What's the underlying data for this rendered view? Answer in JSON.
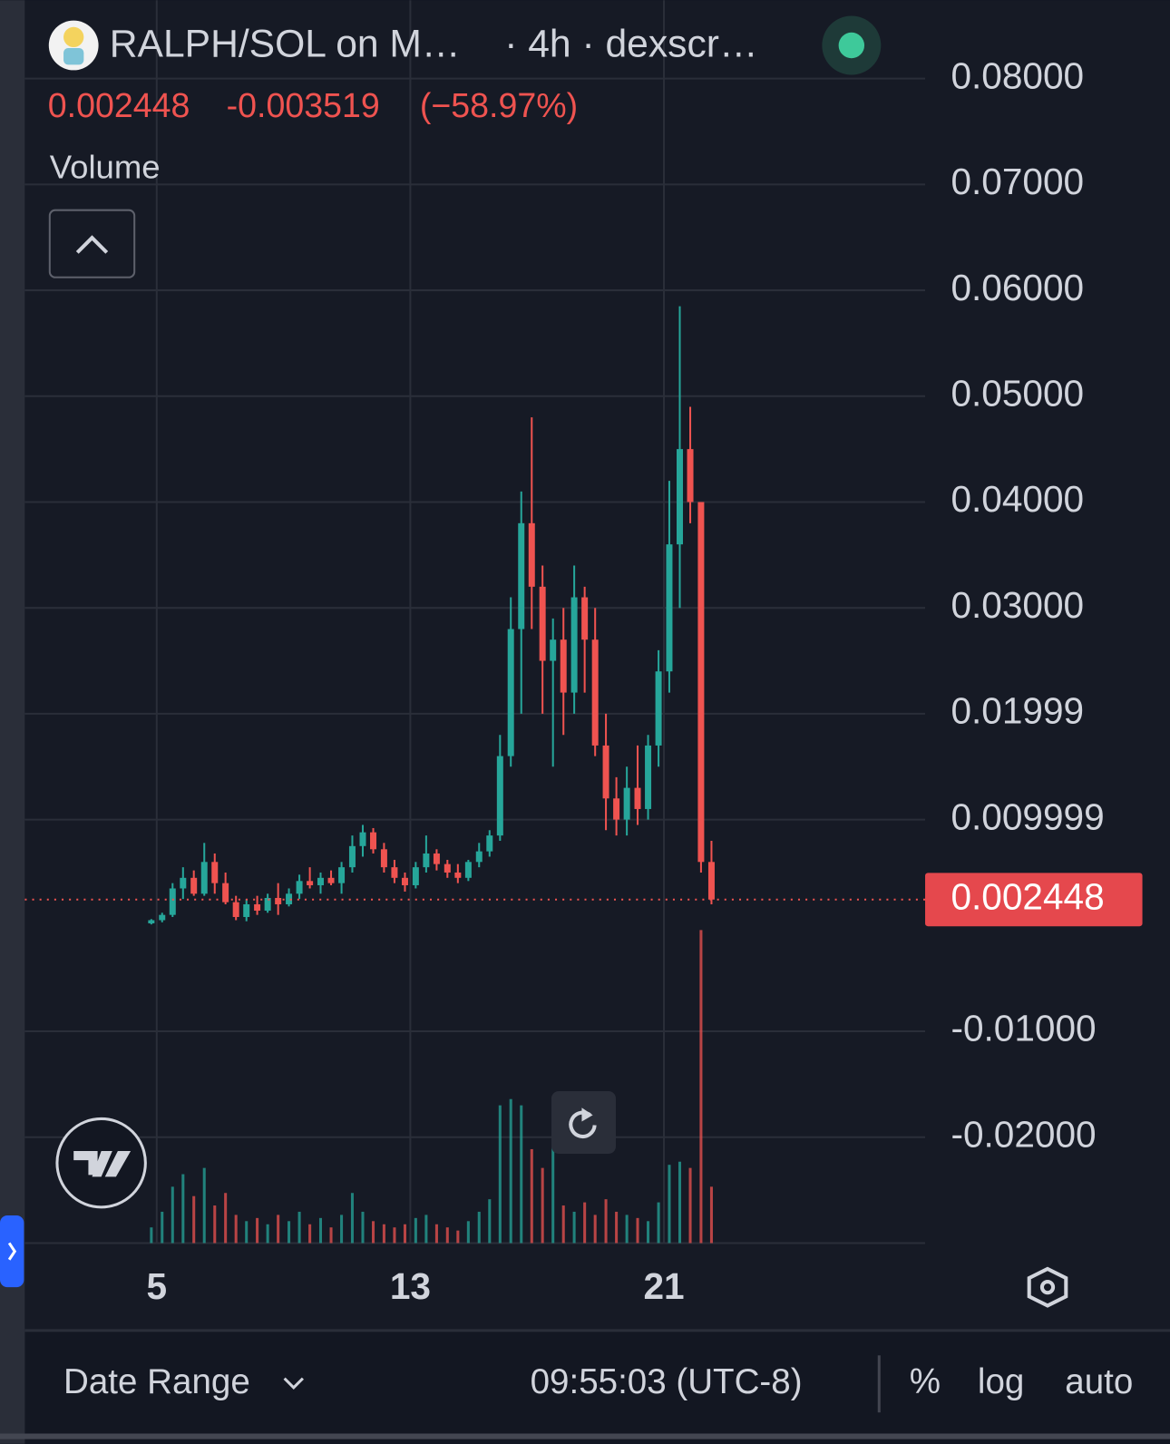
{
  "header": {
    "symbol": "RALPH/SOL on M…",
    "interval_source": "· 4h · dexscr…",
    "change": "-0.003519",
    "change_percent": "(−58.97%)",
    "volume_label": "Volume"
  },
  "footer": {
    "date_range": "Date Range",
    "time": "09:55:03 (UTC-8)",
    "percent": "%",
    "log": "log",
    "auto": "auto"
  },
  "chart_data": {
    "type": "candlestick",
    "up_color": "#26a69a",
    "down_color": "#ef5350",
    "grid": true,
    "x": [
      4.83,
      5.17,
      5.5,
      5.83,
      6.17,
      6.5,
      6.83,
      7.17,
      7.5,
      7.83,
      8.17,
      8.5,
      8.83,
      9.17,
      9.5,
      9.83,
      10.17,
      10.5,
      10.83,
      11.17,
      11.5,
      11.83,
      12.17,
      12.5,
      12.83,
      13.17,
      13.5,
      13.83,
      14.17,
      14.5,
      14.83,
      15.17,
      15.5,
      15.83,
      16.17,
      16.5,
      16.83,
      17.17,
      17.5,
      17.83,
      18.17,
      18.5,
      18.83,
      19.17,
      19.5,
      19.83,
      20.17,
      20.5,
      20.83,
      21.17,
      21.5,
      21.83,
      22.17,
      22.5
    ],
    "open": [
      0.0002,
      0.0005,
      0.001,
      0.0035,
      0.0045,
      0.003,
      0.006,
      0.004,
      0.0022,
      0.0008,
      0.002,
      0.0014,
      0.0026,
      0.002,
      0.003,
      0.0042,
      0.0038,
      0.0045,
      0.004,
      0.0055,
      0.0075,
      0.0088,
      0.0072,
      0.0055,
      0.0045,
      0.0038,
      0.0055,
      0.0068,
      0.0058,
      0.005,
      0.0045,
      0.006,
      0.007,
      0.0085,
      0.016,
      0.028,
      0.038,
      0.032,
      0.025,
      0.027,
      0.022,
      0.031,
      0.027,
      0.017,
      0.012,
      0.01,
      0.013,
      0.011,
      0.017,
      0.024,
      0.036,
      0.045,
      0.04,
      0.006
    ],
    "high": [
      0.0006,
      0.0012,
      0.004,
      0.0055,
      0.0052,
      0.0078,
      0.0068,
      0.005,
      0.0028,
      0.0025,
      0.0028,
      0.003,
      0.004,
      0.0035,
      0.0048,
      0.0055,
      0.005,
      0.0052,
      0.006,
      0.0085,
      0.0095,
      0.0092,
      0.0078,
      0.0062,
      0.005,
      0.006,
      0.0085,
      0.0072,
      0.0062,
      0.0058,
      0.0062,
      0.0078,
      0.009,
      0.018,
      0.031,
      0.041,
      0.048,
      0.034,
      0.029,
      0.03,
      0.034,
      0.032,
      0.03,
      0.02,
      0.014,
      0.015,
      0.017,
      0.018,
      0.026,
      0.042,
      0.0585,
      0.049,
      0.04,
      0.008
    ],
    "low": [
      0.0001,
      0.0003,
      0.0008,
      0.0025,
      0.0028,
      0.0028,
      0.003,
      0.002,
      0.0005,
      0.0004,
      0.001,
      0.0012,
      0.001,
      0.0018,
      0.0025,
      0.0035,
      0.003,
      0.0038,
      0.003,
      0.005,
      0.0065,
      0.0068,
      0.005,
      0.004,
      0.0032,
      0.0035,
      0.005,
      0.0052,
      0.0045,
      0.004,
      0.0042,
      0.0055,
      0.0065,
      0.008,
      0.015,
      0.02,
      0.028,
      0.02,
      0.015,
      0.018,
      0.02,
      0.022,
      0.016,
      0.009,
      0.0085,
      0.0085,
      0.0095,
      0.01,
      0.015,
      0.022,
      0.03,
      0.038,
      0.005,
      0.002
    ],
    "close": [
      0.0005,
      0.001,
      0.0035,
      0.0045,
      0.003,
      0.006,
      0.004,
      0.0022,
      0.0008,
      0.002,
      0.0014,
      0.0026,
      0.002,
      0.003,
      0.0042,
      0.0038,
      0.0045,
      0.004,
      0.0055,
      0.0075,
      0.0088,
      0.0072,
      0.0055,
      0.0045,
      0.0038,
      0.0055,
      0.0068,
      0.0058,
      0.005,
      0.0045,
      0.006,
      0.007,
      0.0085,
      0.016,
      0.028,
      0.038,
      0.032,
      0.025,
      0.027,
      0.022,
      0.031,
      0.027,
      0.017,
      0.012,
      0.01,
      0.013,
      0.011,
      0.017,
      0.024,
      0.036,
      0.045,
      0.04,
      0.006,
      0.002448
    ],
    "volume": [
      5,
      10,
      18,
      22,
      15,
      24,
      12,
      16,
      9,
      7,
      8,
      6,
      9,
      7,
      10,
      6,
      8,
      5,
      9,
      16,
      10,
      7,
      6,
      5,
      6,
      8,
      9,
      6,
      5,
      4,
      7,
      10,
      14,
      44,
      46,
      44,
      30,
      24,
      32,
      12,
      10,
      13,
      9,
      14,
      10,
      9,
      8,
      7,
      13,
      25,
      26,
      24,
      100,
      18
    ],
    "xlim": [
      0.84,
      29.24
    ],
    "xticks": [
      5,
      13,
      21
    ],
    "ylim": [
      -0.03,
      0.0874
    ],
    "yticks": [
      {
        "value": 0.08,
        "label": "0.08000"
      },
      {
        "value": 0.07,
        "label": "0.07000"
      },
      {
        "value": 0.06,
        "label": "0.06000"
      },
      {
        "value": 0.05,
        "label": "0.05000"
      },
      {
        "value": 0.04,
        "label": "0.04000"
      },
      {
        "value": 0.03,
        "label": "0.03000"
      },
      {
        "value": 0.02,
        "label": "0.01999"
      },
      {
        "value": 0.01,
        "label": "0.009999"
      },
      {
        "value": -0.01,
        "label": "-0.01000"
      },
      {
        "value": -0.02,
        "label": "-0.02000"
      }
    ]
  }
}
